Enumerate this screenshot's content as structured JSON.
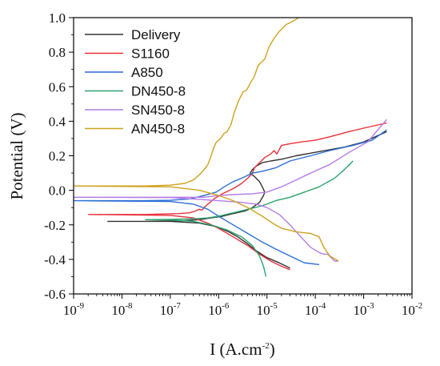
{
  "chart_data": {
    "type": "line",
    "xlabel": {
      "base": "I (A.cm",
      "exp": "-2",
      "close": ")"
    },
    "ylabel": "Potential (V)",
    "x_scale": "log",
    "xlim": [
      1e-09,
      0.01
    ],
    "ylim": [
      -0.6,
      1.0
    ],
    "x_ticks": [
      {
        "value": 1e-09,
        "base": "10",
        "exp": "-9"
      },
      {
        "value": 1e-08,
        "base": "10",
        "exp": "-8"
      },
      {
        "value": 1e-07,
        "base": "10",
        "exp": "-7"
      },
      {
        "value": 1e-06,
        "base": "10",
        "exp": "-6"
      },
      {
        "value": 1e-05,
        "base": "10",
        "exp": "-5"
      },
      {
        "value": 0.0001,
        "base": "10",
        "exp": "-4"
      },
      {
        "value": 0.001,
        "base": "10",
        "exp": "-3"
      },
      {
        "value": 0.01,
        "base": "10",
        "exp": "-2"
      }
    ],
    "y_ticks": [
      {
        "value": -0.6,
        "label": "-0.6"
      },
      {
        "value": -0.4,
        "label": "-0.4"
      },
      {
        "value": -0.2,
        "label": "-0.2"
      },
      {
        "value": 0.0,
        "label": "0.0"
      },
      {
        "value": 0.2,
        "label": "0.2"
      },
      {
        "value": 0.4,
        "label": "0.4"
      },
      {
        "value": 0.6,
        "label": "0.6"
      },
      {
        "value": 0.8,
        "label": "0.8"
      },
      {
        "value": 1.0,
        "label": "1.0"
      }
    ],
    "grid": false,
    "legend_position": "top-left",
    "series": [
      {
        "name": "Delivery",
        "color": "#333333",
        "points": [
          [
            5e-09,
            -0.18
          ],
          [
            3e-08,
            -0.18
          ],
          [
            1e-07,
            -0.178
          ],
          [
            2e-07,
            -0.175
          ],
          [
            4e-07,
            -0.17
          ],
          [
            7e-07,
            -0.16
          ],
          [
            1.2e-06,
            -0.15
          ],
          [
            2e-06,
            -0.135
          ],
          [
            3.5e-06,
            -0.12
          ],
          [
            5e-06,
            -0.1
          ],
          [
            7e-06,
            -0.07
          ],
          [
            8.5e-06,
            -0.03
          ],
          [
            9e-06,
            -0.01
          ],
          [
            8e-06,
            0.02
          ],
          [
            7e-06,
            0.05
          ],
          [
            5.5e-06,
            0.08
          ],
          [
            4.5e-06,
            0.1
          ],
          [
            5e-06,
            0.12
          ],
          [
            6e-06,
            0.14
          ],
          [
            8e-06,
            0.16
          ],
          [
            1.2e-05,
            0.17
          ],
          [
            2e-05,
            0.18
          ],
          [
            4e-05,
            0.2
          ],
          [
            0.0001,
            0.22
          ],
          [
            0.0004,
            0.25
          ],
          [
            0.001,
            0.28
          ],
          [
            0.003,
            0.34
          ],
          null,
          [
            5e-09,
            -0.18
          ],
          [
            1e-07,
            -0.18
          ],
          [
            4e-07,
            -0.19
          ],
          [
            9e-07,
            -0.21
          ],
          [
            1.6e-06,
            -0.24
          ],
          [
            2.5e-06,
            -0.27
          ],
          [
            4e-06,
            -0.31
          ],
          [
            6e-06,
            -0.35
          ],
          [
            1e-05,
            -0.39
          ],
          [
            1.8e-05,
            -0.42
          ],
          [
            3e-05,
            -0.45
          ]
        ]
      },
      {
        "name": "S1160",
        "color": "#e8303a",
        "points": [
          [
            2e-09,
            -0.14
          ],
          [
            3e-08,
            -0.14
          ],
          [
            1.5e-07,
            -0.135
          ],
          [
            2.5e-07,
            -0.13
          ],
          [
            3.3e-07,
            -0.12
          ],
          [
            4e-07,
            -0.11
          ],
          [
            4.5e-07,
            -0.115
          ],
          [
            5e-07,
            -0.1
          ],
          [
            6e-07,
            -0.08
          ],
          [
            8e-07,
            -0.05
          ],
          [
            1.2e-06,
            -0.02
          ],
          [
            2e-06,
            0.01
          ],
          [
            3e-06,
            0.04
          ],
          [
            4e-06,
            0.07
          ],
          [
            5e-06,
            0.1
          ],
          [
            5.5e-06,
            0.13
          ],
          [
            7e-06,
            0.16
          ],
          [
            9e-06,
            0.19
          ],
          [
            1.2e-05,
            0.21
          ],
          [
            1.4e-05,
            0.23
          ],
          [
            1.6e-05,
            0.21
          ],
          [
            2e-05,
            0.26
          ],
          [
            3e-05,
            0.27
          ],
          [
            5e-05,
            0.28
          ],
          [
            0.0001,
            0.29
          ],
          [
            0.0002,
            0.31
          ],
          [
            0.0005,
            0.34
          ],
          [
            0.001,
            0.36
          ],
          [
            0.003,
            0.39
          ],
          null,
          [
            2e-09,
            -0.14
          ],
          [
            1e-07,
            -0.145
          ],
          [
            3e-07,
            -0.16
          ],
          [
            6e-07,
            -0.19
          ],
          [
            1e-06,
            -0.22
          ],
          [
            2e-06,
            -0.27
          ],
          [
            4e-06,
            -0.32
          ],
          [
            7e-06,
            -0.37
          ],
          [
            1.2e-05,
            -0.41
          ],
          [
            2e-05,
            -0.44
          ],
          [
            3e-05,
            -0.46
          ]
        ]
      },
      {
        "name": "A850",
        "color": "#2b6fd6",
        "points": [
          [
            1e-09,
            -0.06
          ],
          [
            3e-08,
            -0.06
          ],
          [
            1e-07,
            -0.058
          ],
          [
            2.5e-07,
            -0.05
          ],
          [
            5e-07,
            -0.03
          ],
          [
            9e-07,
            -0.01
          ],
          [
            1.3e-06,
            0.02
          ],
          [
            2e-06,
            0.05
          ],
          [
            3e-06,
            0.07
          ],
          [
            5e-06,
            0.1
          ],
          [
            8e-06,
            0.11
          ],
          [
            1.5e-05,
            0.13
          ],
          [
            3e-05,
            0.17
          ],
          [
            8e-05,
            0.2
          ],
          [
            0.0002,
            0.23
          ],
          [
            0.0006,
            0.26
          ],
          [
            0.0015,
            0.29
          ],
          [
            0.003,
            0.35
          ],
          null,
          [
            1e-09,
            -0.06
          ],
          [
            1e-07,
            -0.065
          ],
          [
            3e-07,
            -0.08
          ],
          [
            6e-07,
            -0.11
          ],
          [
            1e-06,
            -0.15
          ],
          [
            2e-06,
            -0.2
          ],
          [
            4e-06,
            -0.25
          ],
          [
            8e-06,
            -0.3
          ],
          [
            1.5e-05,
            -0.34
          ],
          [
            3e-05,
            -0.38
          ],
          [
            6e-05,
            -0.42
          ],
          [
            0.00012,
            -0.43
          ]
        ]
      },
      {
        "name": "DN450-8",
        "color": "#2aa36e",
        "points": [
          [
            3e-08,
            -0.17
          ],
          [
            1e-07,
            -0.168
          ],
          [
            3e-07,
            -0.165
          ],
          [
            6e-07,
            -0.16
          ],
          [
            1e-06,
            -0.15
          ],
          [
            2e-06,
            -0.13
          ],
          [
            4e-06,
            -0.11
          ],
          [
            8e-06,
            -0.09
          ],
          [
            1.5e-05,
            -0.06
          ],
          [
            3e-05,
            -0.04
          ],
          [
            6e-05,
            -0.01
          ],
          [
            0.00012,
            0.02
          ],
          [
            0.00025,
            0.07
          ],
          [
            0.0004,
            0.12
          ],
          [
            0.0006,
            0.17
          ],
          null,
          [
            3e-08,
            -0.17
          ],
          [
            1e-07,
            -0.172
          ],
          [
            3e-07,
            -0.18
          ],
          [
            7e-07,
            -0.2
          ],
          [
            1.5e-06,
            -0.23
          ],
          [
            3e-06,
            -0.27
          ],
          [
            5e-06,
            -0.32
          ],
          [
            7e-06,
            -0.38
          ],
          [
            8.5e-06,
            -0.44
          ],
          [
            9.5e-06,
            -0.5
          ]
        ]
      },
      {
        "name": "SN450-8",
        "color": "#b47be8",
        "points": [
          [
            1e-09,
            -0.04
          ],
          [
            1e-07,
            -0.04
          ],
          [
            5e-07,
            -0.04
          ],
          [
            1e-06,
            -0.03
          ],
          [
            2e-06,
            -0.025
          ],
          [
            5e-06,
            -0.02
          ],
          [
            1e-05,
            -0.01
          ],
          [
            2e-05,
            0.02
          ],
          [
            4e-05,
            0.06
          ],
          [
            8e-05,
            0.1
          ],
          [
            0.0002,
            0.15
          ],
          [
            0.0005,
            0.22
          ],
          [
            0.0012,
            0.28
          ],
          [
            0.003,
            0.41
          ],
          null,
          [
            1e-09,
            -0.04
          ],
          [
            1e-07,
            -0.042
          ],
          [
            3e-07,
            -0.05
          ],
          [
            1e-06,
            -0.06
          ],
          [
            3e-06,
            -0.07
          ],
          [
            6e-06,
            -0.08
          ],
          [
            1e-05,
            -0.1
          ],
          [
            1.8e-05,
            -0.14
          ],
          [
            3e-05,
            -0.2
          ],
          [
            5e-05,
            -0.27
          ],
          [
            8e-05,
            -0.33
          ],
          [
            0.00012,
            -0.36
          ],
          [
            0.00015,
            -0.37
          ],
          [
            0.00018,
            -0.37
          ],
          [
            0.00025,
            -0.41
          ],
          [
            0.0003,
            -0.41
          ]
        ]
      },
      {
        "name": "AN450-8",
        "color": "#cfa21f",
        "points": [
          [
            1e-09,
            0.025
          ],
          [
            3e-08,
            0.025
          ],
          [
            1e-07,
            0.03
          ],
          [
            2e-07,
            0.04
          ],
          [
            3e-07,
            0.06
          ],
          [
            4e-07,
            0.09
          ],
          [
            5e-07,
            0.12
          ],
          [
            6e-07,
            0.15
          ],
          [
            7e-07,
            0.2
          ],
          [
            8e-07,
            0.25
          ],
          [
            9e-07,
            0.28
          ],
          [
            1.1e-06,
            0.3
          ],
          [
            1.3e-06,
            0.33
          ],
          [
            1.5e-06,
            0.34
          ],
          [
            1.8e-06,
            0.38
          ],
          [
            2.1e-06,
            0.45
          ],
          [
            2.6e-06,
            0.52
          ],
          [
            3.2e-06,
            0.57
          ],
          [
            3.8e-06,
            0.58
          ],
          [
            4.5e-06,
            0.62
          ],
          [
            5.5e-06,
            0.66
          ],
          [
            6.5e-06,
            0.72
          ],
          [
            7.5e-06,
            0.74
          ],
          [
            9e-06,
            0.76
          ],
          [
            1.1e-05,
            0.83
          ],
          [
            1.4e-05,
            0.88
          ],
          [
            1.8e-05,
            0.92
          ],
          [
            2.5e-05,
            0.96
          ],
          [
            3.5e-05,
            0.98
          ],
          [
            4.5e-05,
            1.0
          ],
          null,
          [
            1e-09,
            0.025
          ],
          [
            1e-07,
            0.02
          ],
          [
            4e-07,
            0.0
          ],
          [
            1e-06,
            -0.03
          ],
          [
            2e-06,
            -0.06
          ],
          [
            4e-06,
            -0.1
          ],
          [
            8e-06,
            -0.15
          ],
          [
            1.3e-05,
            -0.19
          ],
          [
            2e-05,
            -0.22
          ],
          [
            4e-05,
            -0.24
          ],
          [
            8e-05,
            -0.25
          ],
          [
            0.00012,
            -0.27
          ],
          [
            0.00015,
            -0.33
          ],
          [
            0.0002,
            -0.38
          ],
          [
            0.0003,
            -0.41
          ]
        ]
      }
    ]
  }
}
